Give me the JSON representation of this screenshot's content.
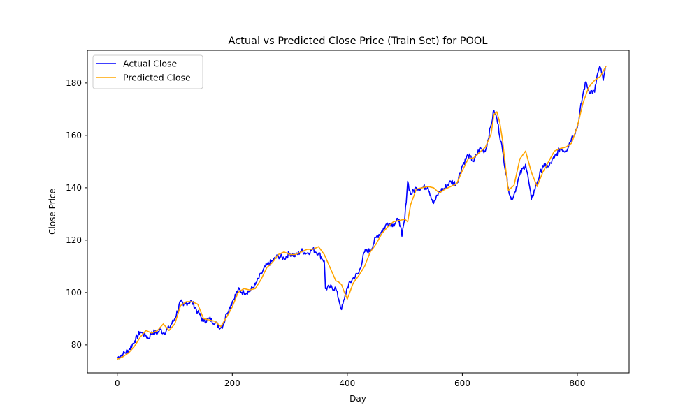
{
  "chart_data": {
    "type": "line",
    "title": "Actual vs Predicted Close Price (Train Set) for POOL",
    "xlabel": "Day",
    "ylabel": "Close Price",
    "xlim": [
      -52,
      890
    ],
    "ylim": [
      69.3,
      192.5
    ],
    "xticks": [
      0,
      200,
      400,
      600,
      800
    ],
    "yticks": [
      80,
      100,
      120,
      140,
      160,
      180
    ],
    "grid": false,
    "legend_position": "top-left",
    "series": [
      {
        "name": "Actual Close",
        "color": "#0000ff",
        "x": [
          0,
          10,
          20,
          30,
          40,
          50,
          55,
          60,
          70,
          75,
          80,
          90,
          100,
          110,
          115,
          120,
          130,
          140,
          150,
          160,
          170,
          180,
          185,
          190,
          200,
          210,
          220,
          230,
          240,
          250,
          260,
          270,
          280,
          290,
          300,
          310,
          320,
          330,
          340,
          350,
          360,
          362,
          370,
          380,
          385,
          390,
          395,
          400,
          410,
          420,
          430,
          440,
          450,
          460,
          470,
          480,
          490,
          495,
          500,
          505,
          510,
          520,
          530,
          540,
          550,
          560,
          570,
          580,
          590,
          600,
          610,
          620,
          630,
          640,
          650,
          655,
          660,
          670,
          680,
          685,
          690,
          700,
          710,
          715,
          720,
          730,
          740,
          750,
          760,
          770,
          780,
          790,
          800,
          810,
          815,
          820,
          830,
          835,
          840,
          845,
          850
        ],
        "y": [
          75.0,
          76.5,
          78.0,
          81.5,
          85.0,
          83.5,
          82.5,
          85.0,
          84.5,
          86.0,
          84.5,
          86.5,
          90.0,
          96.5,
          95.0,
          96.0,
          96.5,
          92.5,
          89.0,
          90.0,
          88.5,
          86.5,
          88.0,
          92.0,
          96.5,
          101.0,
          100.0,
          100.5,
          103.0,
          107.0,
          110.5,
          112.0,
          114.0,
          113.0,
          115.0,
          114.0,
          116.0,
          115.0,
          116.5,
          115.0,
          112.0,
          101.5,
          102.0,
          101.5,
          97.5,
          93.5,
          97.5,
          102.0,
          105.5,
          107.5,
          115.5,
          116.0,
          121.0,
          123.5,
          126.5,
          126.0,
          128.0,
          121.5,
          128.5,
          142.5,
          137.5,
          140.0,
          140.0,
          140.5,
          134.0,
          138.5,
          140.0,
          142.5,
          141.5,
          148.5,
          152.5,
          150.0,
          155.0,
          154.0,
          164.0,
          169.5,
          166.5,
          154.0,
          140.0,
          135.5,
          137.5,
          145.0,
          149.0,
          143.0,
          135.5,
          142.0,
          148.5,
          148.0,
          151.5,
          155.0,
          154.0,
          159.0,
          163.0,
          176.0,
          180.5,
          177.0,
          176.5,
          183.5,
          186.0,
          181.0,
          186.5
        ]
      },
      {
        "name": "Predicted Close",
        "color": "#ffa500",
        "x": [
          0,
          10,
          20,
          30,
          40,
          50,
          60,
          70,
          80,
          90,
          100,
          110,
          120,
          130,
          140,
          150,
          160,
          170,
          180,
          190,
          200,
          210,
          220,
          230,
          240,
          250,
          260,
          270,
          280,
          290,
          300,
          310,
          320,
          330,
          340,
          350,
          360,
          370,
          380,
          385,
          390,
          395,
          400,
          410,
          420,
          430,
          440,
          450,
          460,
          470,
          480,
          490,
          500,
          505,
          510,
          520,
          530,
          540,
          550,
          560,
          570,
          580,
          590,
          600,
          610,
          620,
          630,
          640,
          650,
          655,
          660,
          665,
          670,
          675,
          680,
          690,
          700,
          710,
          720,
          730,
          740,
          750,
          760,
          770,
          780,
          790,
          800,
          810,
          820,
          830,
          840,
          850
        ],
        "y": [
          74.5,
          75.5,
          77.0,
          79.5,
          83.0,
          85.5,
          84.5,
          85.5,
          88.0,
          85.5,
          88.0,
          95.0,
          96.5,
          96.5,
          95.5,
          90.0,
          89.5,
          89.0,
          87.0,
          90.5,
          94.5,
          100.0,
          101.5,
          101.0,
          101.5,
          105.0,
          109.5,
          111.5,
          114.5,
          115.5,
          114.5,
          114.5,
          115.5,
          116.5,
          116.5,
          117.5,
          114.5,
          109.5,
          104.5,
          104.0,
          103.0,
          100.0,
          97.5,
          103.5,
          106.5,
          110.0,
          115.5,
          118.5,
          122.5,
          125.0,
          127.0,
          127.5,
          128.0,
          127.0,
          133.5,
          139.5,
          140.0,
          140.5,
          140.0,
          138.0,
          139.5,
          140.5,
          141.5,
          146.5,
          151.0,
          151.5,
          153.5,
          155.5,
          160.5,
          168.0,
          169.0,
          165.0,
          158.0,
          148.0,
          139.0,
          141.0,
          151.0,
          154.0,
          146.0,
          140.5,
          146.0,
          150.0,
          154.0,
          155.0,
          155.5,
          157.0,
          163.5,
          172.5,
          178.5,
          181.0,
          182.5,
          186.5
        ]
      }
    ]
  }
}
